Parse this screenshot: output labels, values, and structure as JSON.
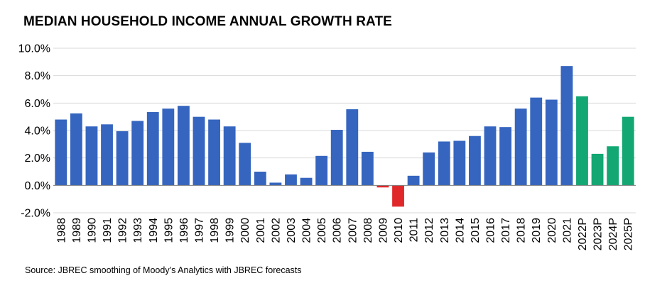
{
  "chart_data": {
    "type": "bar",
    "title": "MEDIAN HOUSEHOLD INCOME ANNUAL GROWTH RATE",
    "source": "Source: JBREC smoothing of Moody’s Analytics with JBREC forecasts",
    "xlabel": "",
    "ylabel": "",
    "ylim": [
      -2.0,
      10.0
    ],
    "yticks": [
      -2.0,
      0.0,
      2.0,
      4.0,
      6.0,
      8.0,
      10.0
    ],
    "ytick_labels": [
      "-2.0%",
      "0.0%",
      "2.0%",
      "4.0%",
      "6.0%",
      "8.0%",
      "10.0%"
    ],
    "grid": "horizontal",
    "categories": [
      "1988",
      "1989",
      "1990",
      "1991",
      "1992",
      "1993",
      "1994",
      "1995",
      "1996",
      "1997",
      "1998",
      "1999",
      "2000",
      "2001",
      "2002",
      "2003",
      "2004",
      "2005",
      "2006",
      "2007",
      "2008",
      "2009",
      "2010",
      "2011",
      "2012",
      "2013",
      "2014",
      "2015",
      "2016",
      "2017",
      "2018",
      "2019",
      "2020",
      "2021",
      "2022P",
      "2023P",
      "2024P",
      "2025P"
    ],
    "values": [
      4.8,
      5.25,
      4.3,
      4.45,
      3.95,
      4.7,
      5.35,
      5.6,
      5.8,
      5.0,
      4.8,
      4.3,
      3.1,
      1.0,
      0.2,
      0.8,
      0.55,
      2.15,
      4.05,
      5.55,
      2.45,
      -0.15,
      -1.55,
      0.7,
      2.4,
      3.2,
      3.25,
      3.6,
      4.3,
      4.25,
      5.6,
      6.4,
      6.25,
      8.7,
      6.5,
      2.3,
      2.85,
      5.0
    ],
    "forecast_flags": [
      false,
      false,
      false,
      false,
      false,
      false,
      false,
      false,
      false,
      false,
      false,
      false,
      false,
      false,
      false,
      false,
      false,
      false,
      false,
      false,
      false,
      false,
      false,
      false,
      false,
      false,
      false,
      false,
      false,
      false,
      false,
      false,
      false,
      false,
      true,
      true,
      true,
      true
    ],
    "colors": {
      "positive": "#3565BF",
      "negative": "#E0282B",
      "forecast": "#12A773",
      "grid": "#D9D9D9",
      "axis": "#7F7F7F"
    }
  }
}
